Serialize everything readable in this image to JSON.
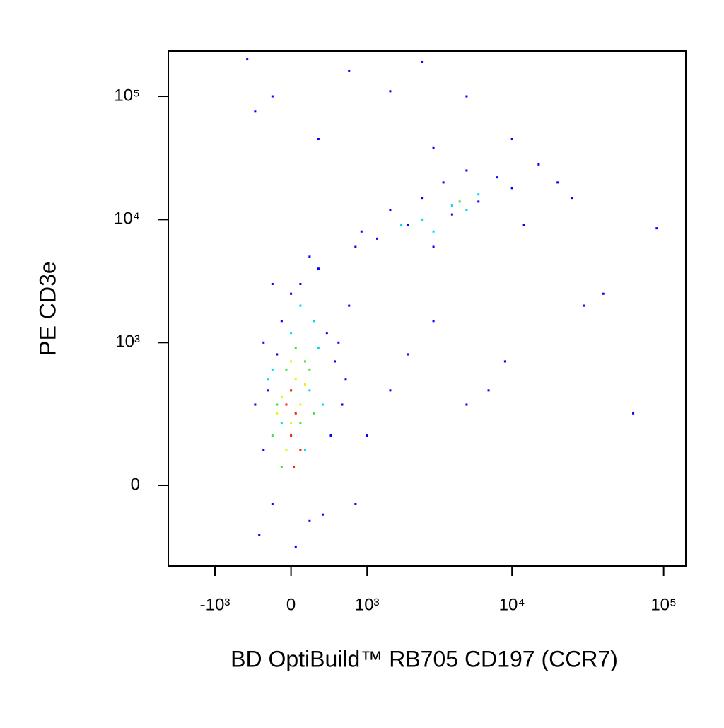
{
  "chart_data": {
    "type": "scatter",
    "xlabel": "BD OptiBuild™ RB705 CD197 (CCR7)",
    "ylabel": "PE CD3e",
    "xscale": "biexponential",
    "yscale": "biexponential",
    "xlim": [
      -2200,
      140000
    ],
    "ylim": [
      -300,
      233000
    ],
    "xticks": [
      {
        "value": -1000,
        "label": "-10³"
      },
      0,
      {
        "value": 1000,
        "label": "10³"
      },
      {
        "value": 10000,
        "label": "10⁴"
      },
      {
        "value": 100000,
        "label": "10⁵"
      }
    ],
    "yticks": [
      0,
      {
        "value": 1000,
        "label": "10³"
      },
      {
        "value": 10000,
        "label": "10⁴"
      },
      {
        "value": 100000,
        "label": "10⁵"
      }
    ],
    "series": [
      {
        "color": "#0000ff",
        "x": [
          -300,
          -250,
          -200,
          -150,
          -100,
          0,
          100,
          200,
          300,
          400,
          500,
          600,
          700,
          800,
          900,
          1200,
          1500,
          2000,
          2500,
          3000,
          3500,
          4000,
          5000,
          6000,
          8000,
          10000,
          12000,
          15000,
          20000,
          25000,
          30000,
          40000,
          9000,
          7000,
          5000,
          3000,
          2000,
          1500,
          1000,
          800,
          -350,
          -400,
          -300,
          -200,
          50,
          200,
          350,
          450,
          550,
          650,
          63000,
          90000,
          -500,
          700,
          2500,
          1500,
          5000,
          -200,
          -400,
          300,
          10000,
          3000
        ],
        "y": [
          100,
          400,
          -50,
          800,
          1500,
          2500,
          3000,
          5000,
          4000,
          1200,
          700,
          300,
          2000,
          6000,
          8000,
          7000,
          12000,
          9000,
          15000,
          6000,
          20000,
          11000,
          25000,
          14000,
          22000,
          18000,
          9000,
          28000,
          20000,
          15000,
          2000,
          2500,
          700,
          400,
          300,
          1500,
          800,
          400,
          150,
          -50,
          -150,
          300,
          1000,
          3000,
          -200,
          -100,
          -80,
          150,
          1000,
          500,
          250,
          8500,
          200000,
          160000,
          190000,
          110000,
          100000,
          100000,
          75000,
          45000,
          45000,
          38000
        ]
      },
      {
        "color": "#00d8e8",
        "x": [
          -200,
          0,
          100,
          200,
          300,
          -100,
          250,
          2500,
          4000,
          6000,
          3000,
          -250,
          150,
          350,
          5000,
          1800
        ],
        "y": [
          600,
          1200,
          2000,
          400,
          900,
          200,
          1500,
          10000,
          13000,
          16000,
          8000,
          500,
          100,
          300,
          12000,
          9000
        ]
      },
      {
        "color": "#40e040",
        "x": [
          -150,
          -50,
          50,
          100,
          200,
          -100,
          0,
          150,
          250,
          -200,
          4500
        ],
        "y": [
          300,
          600,
          900,
          200,
          600,
          50,
          400,
          700,
          250,
          150,
          14000
        ]
      },
      {
        "color": "#f0f000",
        "x": [
          -100,
          0,
          50,
          100,
          -50,
          150,
          0,
          -150
        ],
        "y": [
          350,
          200,
          500,
          300,
          100,
          450,
          700,
          250
        ]
      },
      {
        "color": "#ff2000",
        "x": [
          0,
          50,
          -50,
          100,
          0,
          30
        ],
        "y": [
          150,
          250,
          300,
          100,
          400,
          50
        ]
      }
    ]
  }
}
